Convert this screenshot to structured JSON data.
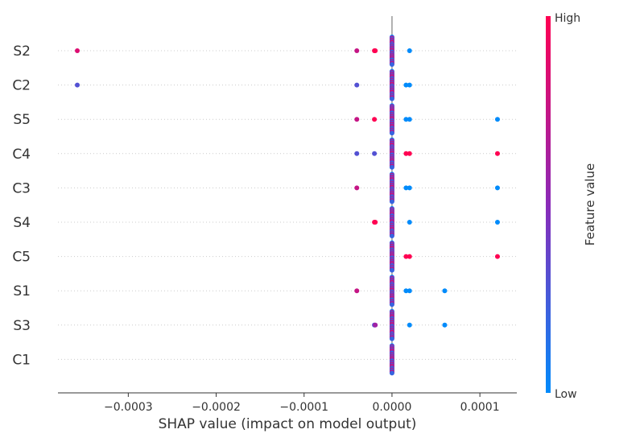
{
  "chart_data": {
    "type": "scatter",
    "subtype": "shap-beeswarm",
    "xlabel": "SHAP value (impact on model output)",
    "ylabel": "",
    "xlim": [
      -0.00038,
      0.000142
    ],
    "x_ticks": [
      -0.0003,
      -0.0002,
      -0.0001,
      0.0,
      0.0001
    ],
    "x_tick_labels": [
      "−0.0003",
      "−0.0002",
      "−0.0001",
      "0.0000",
      "0.0001"
    ],
    "features": [
      "S2",
      "C2",
      "S5",
      "C4",
      "C3",
      "S4",
      "C5",
      "S1",
      "S3",
      "C1"
    ],
    "colorbar": {
      "label": "Feature value",
      "high_label": "High",
      "low_label": "Low",
      "low_color": "#008bfb",
      "mid_color": "#8a2ab8",
      "high_color": "#ff0052"
    },
    "grid": "dotted horizontal per feature",
    "zero_line": true,
    "outlier_points": [
      {
        "feature": "S2",
        "x": -0.000358,
        "v": 0.85
      },
      {
        "feature": "S2",
        "x": -4e-05,
        "v": 0.75
      },
      {
        "feature": "S2",
        "x": -2e-05,
        "v": 1.0
      },
      {
        "feature": "S2",
        "x": -1.9e-05,
        "v": 1.0
      },
      {
        "feature": "S2",
        "x": 2e-05,
        "v": 0.0
      },
      {
        "feature": "C2",
        "x": -0.000358,
        "v": 0.3
      },
      {
        "feature": "C2",
        "x": -4e-05,
        "v": 0.3
      },
      {
        "feature": "C2",
        "x": 1.6e-05,
        "v": 0.0
      },
      {
        "feature": "C2",
        "x": 2e-05,
        "v": 0.0
      },
      {
        "feature": "S5",
        "x": -4e-05,
        "v": 0.75
      },
      {
        "feature": "S5",
        "x": -2e-05,
        "v": 1.0
      },
      {
        "feature": "S5",
        "x": 1.6e-05,
        "v": 0.0
      },
      {
        "feature": "S5",
        "x": 2e-05,
        "v": 0.0
      },
      {
        "feature": "S5",
        "x": 0.00012,
        "v": 0.0
      },
      {
        "feature": "C4",
        "x": -4e-05,
        "v": 0.3
      },
      {
        "feature": "C4",
        "x": -2e-05,
        "v": 0.3
      },
      {
        "feature": "C4",
        "x": 1.6e-05,
        "v": 1.0
      },
      {
        "feature": "C4",
        "x": 2e-05,
        "v": 1.0
      },
      {
        "feature": "C4",
        "x": 0.00012,
        "v": 1.0
      },
      {
        "feature": "C3",
        "x": -4e-05,
        "v": 0.75
      },
      {
        "feature": "C3",
        "x": 1.6e-05,
        "v": 0.0
      },
      {
        "feature": "C3",
        "x": 2e-05,
        "v": 0.0
      },
      {
        "feature": "C3",
        "x": 0.00012,
        "v": 0.0
      },
      {
        "feature": "S4",
        "x": -2e-05,
        "v": 1.0
      },
      {
        "feature": "S4",
        "x": -1.9e-05,
        "v": 1.0
      },
      {
        "feature": "S4",
        "x": 2e-05,
        "v": 0.0
      },
      {
        "feature": "S4",
        "x": 0.00012,
        "v": 0.0
      },
      {
        "feature": "C5",
        "x": 1.6e-05,
        "v": 1.0
      },
      {
        "feature": "C5",
        "x": 2e-05,
        "v": 1.0
      },
      {
        "feature": "C5",
        "x": 0.00012,
        "v": 1.0
      },
      {
        "feature": "S1",
        "x": -4e-05,
        "v": 0.75
      },
      {
        "feature": "S1",
        "x": 1.6e-05,
        "v": 0.0
      },
      {
        "feature": "S1",
        "x": 2e-05,
        "v": 0.0
      },
      {
        "feature": "S1",
        "x": 6e-05,
        "v": 0.0
      },
      {
        "feature": "S3",
        "x": -2e-05,
        "v": 0.3
      },
      {
        "feature": "S3",
        "x": -1.9e-05,
        "v": 0.6
      },
      {
        "feature": "S3",
        "x": 2e-05,
        "v": 0.0
      },
      {
        "feature": "S3",
        "x": 6e-05,
        "v": 0.0
      }
    ],
    "zero_cluster": {
      "x": 0.0,
      "points_per_feature": 40,
      "color_mode": "mixed"
    }
  }
}
